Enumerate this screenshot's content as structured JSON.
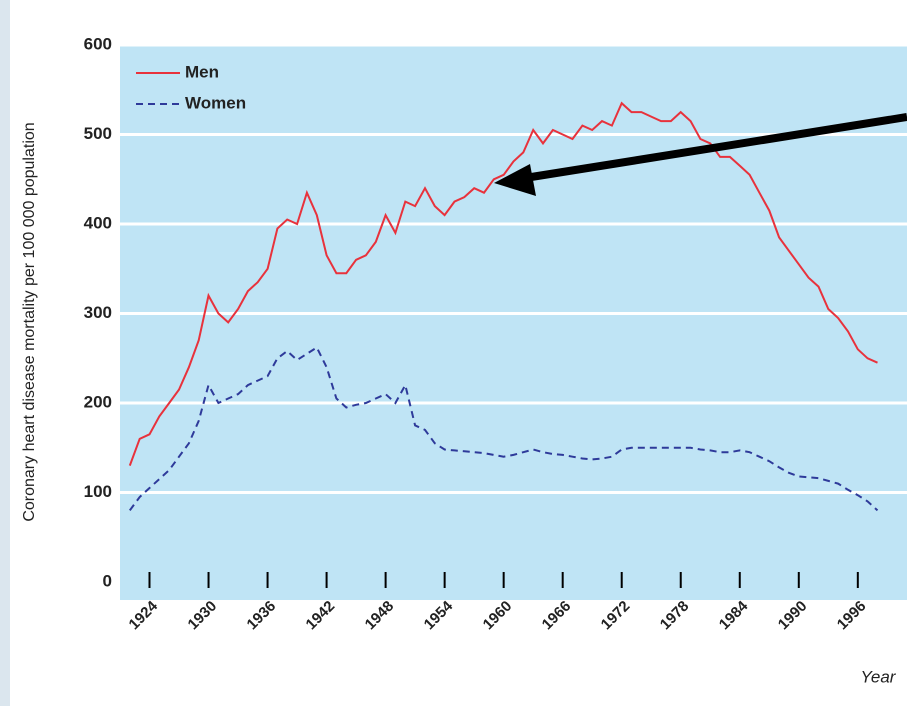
{
  "chart_data": {
    "type": "line",
    "y_label": "Coronary heart disease mortality per 100 000 population",
    "x_label": "Year",
    "x": [
      1922,
      1923,
      1924,
      1925,
      1926,
      1927,
      1928,
      1929,
      1930,
      1931,
      1932,
      1933,
      1934,
      1935,
      1936,
      1937,
      1938,
      1939,
      1940,
      1941,
      1942,
      1943,
      1944,
      1945,
      1946,
      1947,
      1948,
      1949,
      1950,
      1951,
      1952,
      1953,
      1954,
      1955,
      1956,
      1957,
      1958,
      1959,
      1960,
      1961,
      1962,
      1963,
      1964,
      1965,
      1966,
      1967,
      1968,
      1969,
      1970,
      1971,
      1972,
      1973,
      1974,
      1975,
      1976,
      1977,
      1978,
      1979,
      1980,
      1981,
      1982,
      1983,
      1984,
      1985,
      1986,
      1987,
      1988,
      1989,
      1990,
      1991,
      1992,
      1993,
      1994,
      1995,
      1996,
      1997,
      1998
    ],
    "series": [
      {
        "name": "Men",
        "color": "#e8323c",
        "dash": false,
        "values": [
          130,
          160,
          165,
          185,
          200,
          215,
          240,
          270,
          320,
          300,
          290,
          305,
          325,
          335,
          350,
          395,
          405,
          400,
          435,
          410,
          365,
          345,
          345,
          360,
          365,
          380,
          410,
          390,
          425,
          420,
          440,
          420,
          410,
          425,
          430,
          440,
          435,
          450,
          455,
          470,
          480,
          505,
          490,
          505,
          500,
          495,
          510,
          505,
          515,
          510,
          535,
          525,
          525,
          520,
          515,
          515,
          525,
          515,
          495,
          490,
          475,
          475,
          465,
          455,
          435,
          415,
          385,
          370,
          355,
          340,
          330,
          305,
          295,
          280,
          260,
          250,
          245
        ]
      },
      {
        "name": "Women",
        "color": "#2e3a9a",
        "dash": true,
        "values": [
          80,
          95,
          105,
          115,
          125,
          140,
          155,
          180,
          220,
          200,
          205,
          210,
          220,
          225,
          230,
          250,
          258,
          248,
          255,
          262,
          240,
          205,
          195,
          198,
          200,
          205,
          210,
          200,
          220,
          175,
          170,
          155,
          148,
          147,
          146,
          145,
          144,
          142,
          140,
          142,
          145,
          148,
          145,
          143,
          142,
          140,
          138,
          137,
          138,
          140,
          148,
          150,
          150,
          150,
          150,
          150,
          150,
          150,
          148,
          147,
          145,
          145,
          147,
          145,
          140,
          135,
          128,
          122,
          118,
          117,
          116,
          113,
          110,
          103,
          97,
          90,
          80
        ]
      }
    ],
    "xlim": [
      1921,
      2001
    ],
    "xticks": [
      1924,
      1930,
      1936,
      1942,
      1948,
      1954,
      1960,
      1966,
      1972,
      1978,
      1984,
      1990,
      1996
    ],
    "ylim": [
      0,
      600
    ],
    "yticks": [
      0,
      100,
      200,
      300,
      400,
      500,
      600
    ],
    "grid": true,
    "legend": "upper left"
  }
}
